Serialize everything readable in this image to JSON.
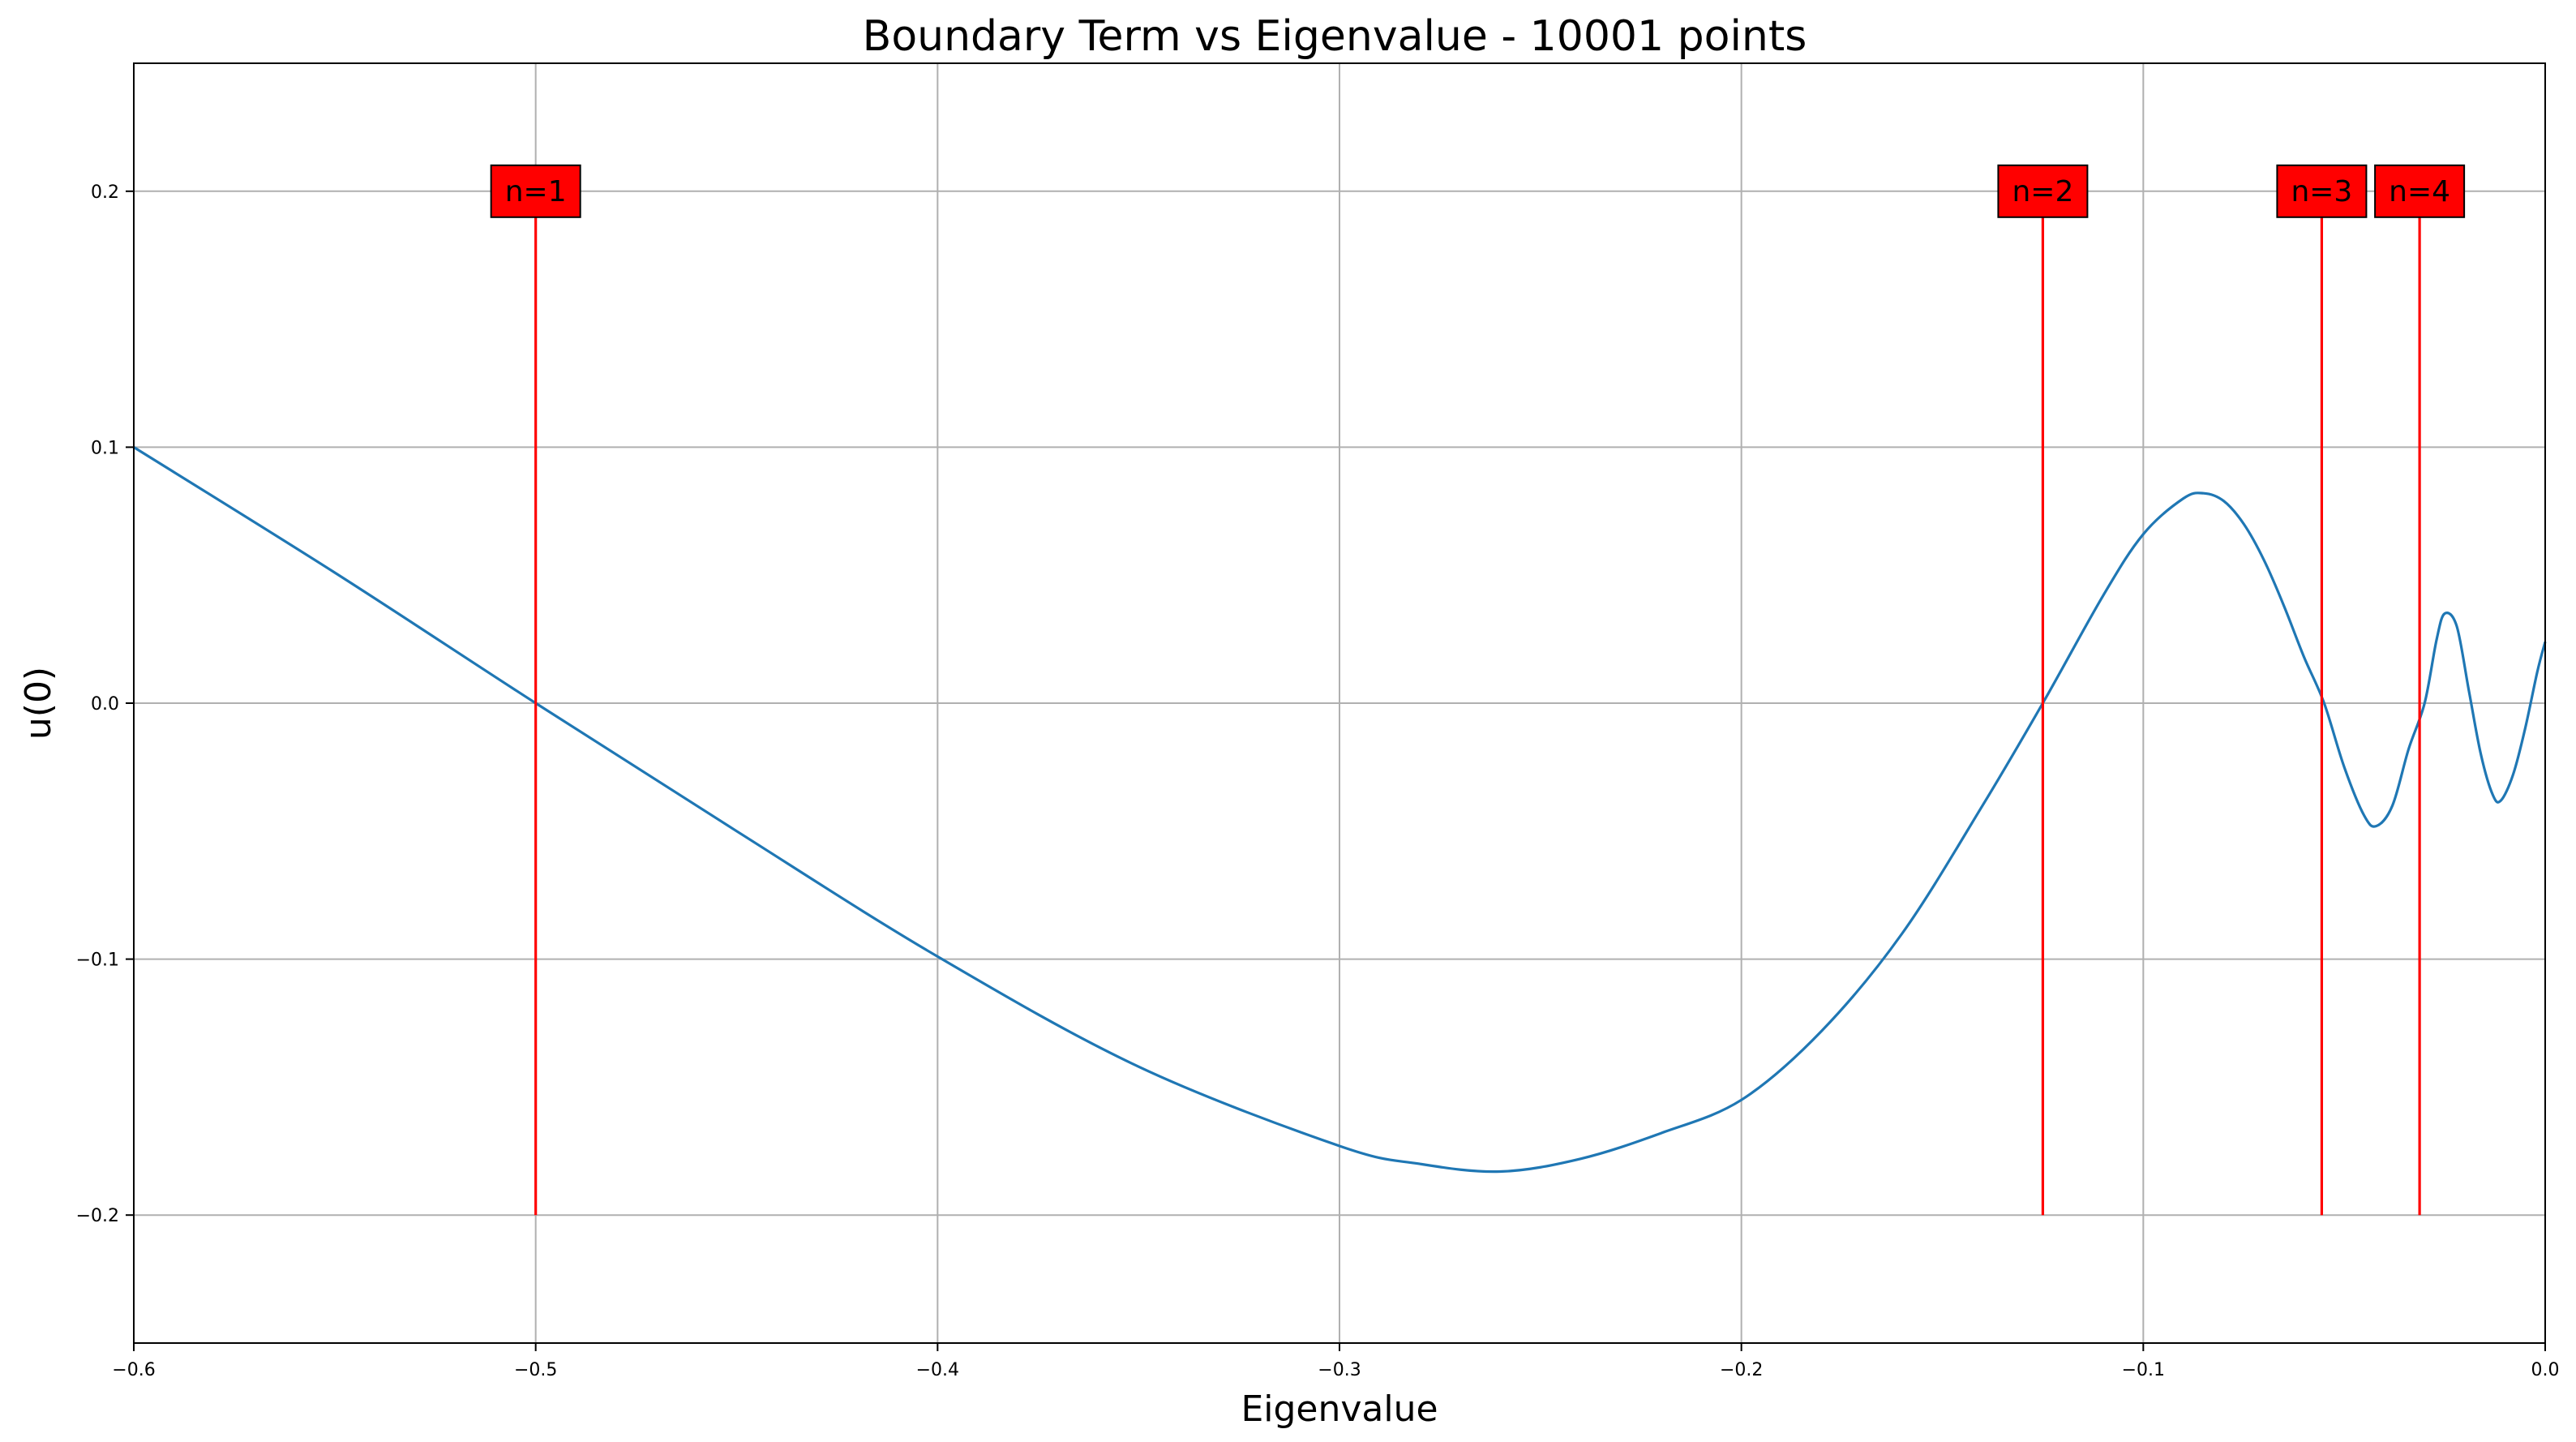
{
  "chart_data": {
    "type": "line",
    "title": "Boundary Term vs Eigenvalue - 10001 points",
    "xlabel": "Eigenvalue",
    "ylabel": "u(0)",
    "xlim": [
      -0.6,
      0.0
    ],
    "ylim": [
      -0.25,
      0.25
    ],
    "grid": true,
    "x_ticks": [
      -0.6,
      -0.5,
      -0.4,
      -0.3,
      -0.2,
      -0.1,
      0.0
    ],
    "x_tick_labels": [
      "−0.6",
      "−0.5",
      "−0.4",
      "−0.3",
      "−0.2",
      "−0.1",
      "0.0"
    ],
    "y_ticks": [
      -0.2,
      -0.1,
      0.0,
      0.1,
      0.2
    ],
    "y_tick_labels": [
      "−0.2",
      "−0.1",
      "0.0",
      "0.1",
      "0.2"
    ],
    "series": [
      {
        "color": "#1f77b4",
        "x": [
          -0.6,
          -0.55,
          -0.5,
          -0.45,
          -0.4,
          -0.35,
          -0.3,
          -0.28,
          -0.26,
          -0.24,
          -0.22,
          -0.2,
          -0.18,
          -0.16,
          -0.14,
          -0.125,
          -0.11,
          -0.1,
          -0.09,
          -0.085,
          -0.08,
          -0.075,
          -0.07,
          -0.065,
          -0.06,
          -0.055,
          -0.05,
          -0.045,
          -0.042,
          -0.038,
          -0.034,
          -0.03,
          -0.027,
          -0.025,
          -0.022,
          -0.019,
          -0.016,
          -0.013,
          -0.011,
          -0.008,
          -0.005,
          -0.002,
          0.0
        ],
        "y": [
          0.1,
          0.051,
          0.0,
          -0.05,
          -0.099,
          -0.142,
          -0.173,
          -0.18,
          -0.183,
          -0.178,
          -0.168,
          -0.155,
          -0.128,
          -0.09,
          -0.04,
          0.0,
          0.042,
          0.066,
          0.08,
          0.082,
          0.079,
          0.07,
          0.056,
          0.038,
          0.018,
          0.0,
          -0.025,
          -0.044,
          -0.048,
          -0.04,
          -0.018,
          0.0,
          0.025,
          0.035,
          0.03,
          0.005,
          -0.02,
          -0.036,
          -0.038,
          -0.028,
          -0.01,
          0.012,
          0.024
        ]
      }
    ],
    "markers": [
      {
        "label": "n=1",
        "x": -0.5,
        "color": "#ff0000"
      },
      {
        "label": "n=2",
        "x": -0.125,
        "color": "#ff0000"
      },
      {
        "label": "n=3",
        "x": -0.0556,
        "color": "#ff0000"
      },
      {
        "label": "n=4",
        "x": -0.03125,
        "color": "#ff0000"
      }
    ],
    "marker_y_range": [
      -0.2,
      0.2
    ]
  }
}
